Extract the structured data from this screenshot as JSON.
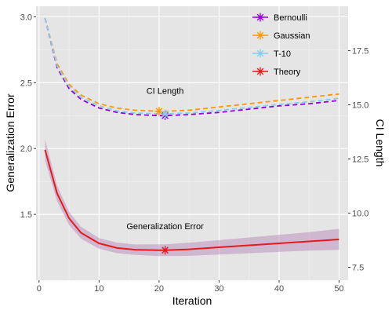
{
  "chart_data": {
    "type": "line",
    "x": [
      1,
      3,
      5,
      7,
      10,
      13,
      16,
      20,
      21,
      25,
      30,
      35,
      40,
      45,
      50
    ],
    "xlabel": "Iteration",
    "ylabel": "Generalization Error",
    "y2label": "CI Length",
    "xlim": [
      -0.5,
      51.5
    ],
    "ylim": [
      1.0,
      3.08
    ],
    "y2lim": [
      6.9,
      19.55
    ],
    "xticks": [
      "0",
      "10",
      "20",
      "30",
      "40",
      "50"
    ],
    "yticks": [
      "1.5",
      "2.0",
      "2.5",
      "3.0"
    ],
    "y2ticks": [
      "7.5",
      "10.0",
      "12.5",
      "15.0",
      "17.5"
    ],
    "grid": true,
    "background": "#e5e5e5",
    "legend_position": "top-right",
    "annotations": [
      {
        "text": "CI Length",
        "x": 21,
        "y": 2.44
      },
      {
        "text": "Generalization Error",
        "x": 21,
        "y": 1.41
      }
    ],
    "ci_series": [
      {
        "name": "Bernoulli",
        "color": "#9400D3",
        "values": [
          19.0,
          16.72,
          15.75,
          15.25,
          14.85,
          14.65,
          14.55,
          14.5,
          14.5,
          14.55,
          14.65,
          14.8,
          14.95,
          15.05,
          15.2
        ],
        "marker": {
          "x": 21,
          "y": 14.5
        }
      },
      {
        "name": "Gaussian",
        "color": "#FF9900",
        "values": [
          19.0,
          16.9,
          15.95,
          15.45,
          15.05,
          14.85,
          14.75,
          14.7,
          14.7,
          14.75,
          14.9,
          15.05,
          15.2,
          15.35,
          15.5
        ],
        "marker": {
          "x": 20,
          "y": 14.7
        }
      },
      {
        "name": "T-10",
        "color": "#87CEEB",
        "values": [
          19.0,
          16.8,
          15.85,
          15.35,
          14.95,
          14.72,
          14.62,
          14.58,
          14.58,
          14.62,
          14.74,
          14.88,
          15.02,
          15.14,
          15.3
        ],
        "marker": {
          "x": 21,
          "y": 14.58
        }
      }
    ],
    "error_series": [
      {
        "name": "Theory",
        "color": "#E41A1C",
        "values": [
          1.99,
          1.66,
          1.47,
          1.36,
          1.28,
          1.245,
          1.232,
          1.228,
          1.228,
          1.235,
          1.25,
          1.265,
          1.28,
          1.295,
          1.31
        ],
        "band_half_width": [
          0.08,
          0.06,
          0.05,
          0.045,
          0.04,
          0.04,
          0.04,
          0.045,
          0.045,
          0.05,
          0.055,
          0.06,
          0.065,
          0.07,
          0.08
        ],
        "marker": {
          "x": 21,
          "y": 1.228
        }
      }
    ],
    "legend": [
      "Bernoulli",
      "Gaussian",
      "T-10",
      "Theory"
    ],
    "legend_colors": [
      "#9400D3",
      "#FF9900",
      "#87CEEB",
      "#E41A1C"
    ]
  }
}
